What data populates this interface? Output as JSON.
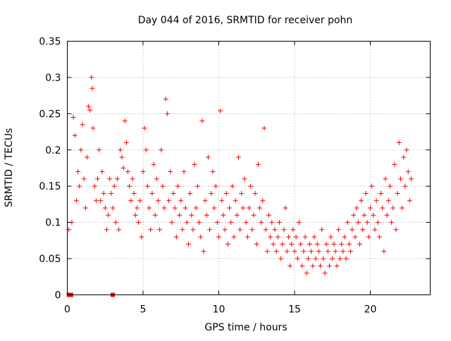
{
  "chart_data": {
    "type": "scatter",
    "title": "Day 044 of 2016, SRMTID for receiver pohn",
    "xlabel": "GPS time / hours",
    "ylabel": "SRMTID / TECUs",
    "xlim": [
      0,
      24
    ],
    "ylim": [
      0,
      0.35
    ],
    "xticks": [
      0,
      5,
      10,
      15,
      20
    ],
    "xtick_labels": [
      "0",
      "5",
      "10",
      "15",
      "20"
    ],
    "yticks": [
      0,
      0.05,
      0.1,
      0.15,
      0.2,
      0.25,
      0.3,
      0.35
    ],
    "ytick_labels": [
      "0",
      "0.05",
      "0.1",
      "0.15",
      "0.2",
      "0.25",
      "0.3",
      "0.35"
    ],
    "grid": true,
    "marker": "plus",
    "color": "#ff0000",
    "series": [
      {
        "name": "SRMTID",
        "points": [
          [
            0.1,
            0.09
          ],
          [
            0.3,
            0.1
          ],
          [
            0.4,
            0.245
          ],
          [
            0.5,
            0.22
          ],
          [
            0.6,
            0.13
          ],
          [
            0.7,
            0.17
          ],
          [
            0.8,
            0.15
          ],
          [
            0.9,
            0.2
          ],
          [
            1.0,
            0.235
          ],
          [
            1.1,
            0.16
          ],
          [
            1.2,
            0.12
          ],
          [
            1.3,
            0.19
          ],
          [
            1.4,
            0.26
          ],
          [
            1.5,
            0.255
          ],
          [
            1.6,
            0.3
          ],
          [
            1.65,
            0.285
          ],
          [
            1.7,
            0.23
          ],
          [
            1.8,
            0.15
          ],
          [
            1.9,
            0.13
          ],
          [
            2.0,
            0.16
          ],
          [
            2.1,
            0.2
          ],
          [
            2.2,
            0.13
          ],
          [
            2.3,
            0.17
          ],
          [
            2.4,
            0.14
          ],
          [
            2.5,
            0.12
          ],
          [
            2.6,
            0.09
          ],
          [
            2.7,
            0.11
          ],
          [
            2.8,
            0.16
          ],
          [
            2.9,
            0.14
          ],
          [
            3.0,
            0.12
          ],
          [
            3.1,
            0.15
          ],
          [
            3.2,
            0.1
          ],
          [
            3.3,
            0.16
          ],
          [
            3.4,
            0.09
          ],
          [
            3.5,
            0.2
          ],
          [
            3.6,
            0.19
          ],
          [
            3.7,
            0.175
          ],
          [
            3.8,
            0.24
          ],
          [
            3.9,
            0.21
          ],
          [
            4.0,
            0.17
          ],
          [
            4.1,
            0.15
          ],
          [
            4.2,
            0.13
          ],
          [
            4.3,
            0.16
          ],
          [
            4.4,
            0.14
          ],
          [
            4.5,
            0.11
          ],
          [
            4.6,
            0.12
          ],
          [
            4.7,
            0.1
          ],
          [
            4.8,
            0.13
          ],
          [
            4.9,
            0.08
          ],
          [
            5.0,
            0.17
          ],
          [
            5.1,
            0.23
          ],
          [
            5.2,
            0.2
          ],
          [
            5.3,
            0.15
          ],
          [
            5.4,
            0.12
          ],
          [
            5.5,
            0.09
          ],
          [
            5.6,
            0.14
          ],
          [
            5.7,
            0.18
          ],
          [
            5.8,
            0.11
          ],
          [
            5.9,
            0.16
          ],
          [
            6.0,
            0.13
          ],
          [
            6.1,
            0.09
          ],
          [
            6.2,
            0.2
          ],
          [
            6.3,
            0.15
          ],
          [
            6.4,
            0.12
          ],
          [
            6.5,
            0.27
          ],
          [
            6.6,
            0.25
          ],
          [
            6.7,
            0.13
          ],
          [
            6.8,
            0.17
          ],
          [
            6.9,
            0.1
          ],
          [
            7.0,
            0.14
          ],
          [
            7.1,
            0.12
          ],
          [
            7.2,
            0.08
          ],
          [
            7.3,
            0.15
          ],
          [
            7.4,
            0.11
          ],
          [
            7.5,
            0.13
          ],
          [
            7.6,
            0.09
          ],
          [
            7.7,
            0.17
          ],
          [
            7.8,
            0.12
          ],
          [
            7.9,
            0.1
          ],
          [
            8.0,
            0.07
          ],
          [
            8.1,
            0.14
          ],
          [
            8.2,
            0.11
          ],
          [
            8.3,
            0.09
          ],
          [
            8.4,
            0.18
          ],
          [
            8.5,
            0.12
          ],
          [
            8.6,
            0.15
          ],
          [
            8.7,
            0.1
          ],
          [
            8.8,
            0.08
          ],
          [
            8.9,
            0.24
          ],
          [
            9.0,
            0.06
          ],
          [
            9.1,
            0.13
          ],
          [
            9.2,
            0.11
          ],
          [
            9.3,
            0.19
          ],
          [
            9.4,
            0.09
          ],
          [
            9.5,
            0.14
          ],
          [
            9.6,
            0.17
          ],
          [
            9.7,
            0.12
          ],
          [
            9.8,
            0.15
          ],
          [
            9.9,
            0.1
          ],
          [
            10.0,
            0.08
          ],
          [
            10.1,
            0.254
          ],
          [
            10.2,
            0.13
          ],
          [
            10.3,
            0.11
          ],
          [
            10.4,
            0.09
          ],
          [
            10.5,
            0.14
          ],
          [
            10.6,
            0.07
          ],
          [
            10.7,
            0.12
          ],
          [
            10.8,
            0.1
          ],
          [
            10.9,
            0.15
          ],
          [
            11.0,
            0.08
          ],
          [
            11.1,
            0.13
          ],
          [
            11.2,
            0.11
          ],
          [
            11.3,
            0.19
          ],
          [
            11.4,
            0.09
          ],
          [
            11.5,
            0.14
          ],
          [
            11.6,
            0.12
          ],
          [
            11.7,
            0.16
          ],
          [
            11.8,
            0.1
          ],
          [
            11.9,
            0.08
          ],
          [
            12.0,
            0.12
          ],
          [
            12.1,
            0.15
          ],
          [
            12.2,
            0.09
          ],
          [
            12.3,
            0.11
          ],
          [
            12.4,
            0.14
          ],
          [
            12.5,
            0.07
          ],
          [
            12.6,
            0.18
          ],
          [
            12.7,
            0.12
          ],
          [
            12.8,
            0.1
          ],
          [
            12.9,
            0.13
          ],
          [
            13.0,
            0.23
          ],
          [
            13.1,
            0.09
          ],
          [
            13.2,
            0.06
          ],
          [
            13.3,
            0.11
          ],
          [
            13.4,
            0.08
          ],
          [
            13.5,
            0.1
          ],
          [
            13.6,
            0.07
          ],
          [
            13.7,
            0.09
          ],
          [
            13.8,
            0.06
          ],
          [
            13.9,
            0.08
          ],
          [
            14.0,
            0.1
          ],
          [
            14.1,
            0.05
          ],
          [
            14.2,
            0.07
          ],
          [
            14.3,
            0.09
          ],
          [
            14.4,
            0.12
          ],
          [
            14.5,
            0.06
          ],
          [
            14.6,
            0.08
          ],
          [
            14.7,
            0.04
          ],
          [
            14.8,
            0.07
          ],
          [
            14.9,
            0.09
          ],
          [
            15.0,
            0.06
          ],
          [
            15.1,
            0.08
          ],
          [
            15.2,
            0.05
          ],
          [
            15.3,
            0.1
          ],
          [
            15.4,
            0.07
          ],
          [
            15.5,
            0.04
          ],
          [
            15.6,
            0.06
          ],
          [
            15.7,
            0.08
          ],
          [
            15.8,
            0.03
          ],
          [
            15.9,
            0.05
          ],
          [
            16.0,
            0.07
          ],
          [
            16.1,
            0.06
          ],
          [
            16.2,
            0.04
          ],
          [
            16.3,
            0.08
          ],
          [
            16.4,
            0.05
          ],
          [
            16.5,
            0.07
          ],
          [
            16.6,
            0.06
          ],
          [
            16.7,
            0.04
          ],
          [
            16.8,
            0.09
          ],
          [
            16.9,
            0.05
          ],
          [
            17.0,
            0.03
          ],
          [
            17.1,
            0.07
          ],
          [
            17.2,
            0.06
          ],
          [
            17.3,
            0.04
          ],
          [
            17.4,
            0.08
          ],
          [
            17.5,
            0.05
          ],
          [
            17.6,
            0.07
          ],
          [
            17.7,
            0.06
          ],
          [
            17.8,
            0.04
          ],
          [
            17.9,
            0.09
          ],
          [
            18.0,
            0.05
          ],
          [
            18.1,
            0.07
          ],
          [
            18.2,
            0.06
          ],
          [
            18.3,
            0.08
          ],
          [
            18.4,
            0.05
          ],
          [
            18.5,
            0.1
          ],
          [
            18.6,
            0.07
          ],
          [
            18.7,
            0.06
          ],
          [
            18.8,
            0.09
          ],
          [
            18.9,
            0.11
          ],
          [
            19.0,
            0.08
          ],
          [
            19.1,
            0.12
          ],
          [
            19.2,
            0.1
          ],
          [
            19.3,
            0.07
          ],
          [
            19.4,
            0.13
          ],
          [
            19.5,
            0.09
          ],
          [
            19.6,
            0.11
          ],
          [
            19.7,
            0.14
          ],
          [
            19.8,
            0.1
          ],
          [
            19.9,
            0.08
          ],
          [
            20.0,
            0.12
          ],
          [
            20.1,
            0.15
          ],
          [
            20.2,
            0.11
          ],
          [
            20.3,
            0.09
          ],
          [
            20.4,
            0.13
          ],
          [
            20.5,
            0.1
          ],
          [
            20.6,
            0.08
          ],
          [
            20.7,
            0.14
          ],
          [
            20.8,
            0.12
          ],
          [
            20.9,
            0.06
          ],
          [
            21.0,
            0.16
          ],
          [
            21.1,
            0.11
          ],
          [
            21.2,
            0.13
          ],
          [
            21.3,
            0.15
          ],
          [
            21.4,
            0.1
          ],
          [
            21.5,
            0.12
          ],
          [
            21.6,
            0.18
          ],
          [
            21.7,
            0.09
          ],
          [
            21.8,
            0.14
          ],
          [
            21.9,
            0.21
          ],
          [
            22.0,
            0.16
          ],
          [
            22.1,
            0.12
          ],
          [
            22.2,
            0.19
          ],
          [
            22.3,
            0.15
          ],
          [
            22.4,
            0.2
          ],
          [
            22.5,
            0.17
          ],
          [
            22.6,
            0.13
          ],
          [
            22.7,
            0.16
          ]
        ]
      }
    ],
    "zero_markers": [
      0.1,
      0.25,
      3.0
    ]
  }
}
